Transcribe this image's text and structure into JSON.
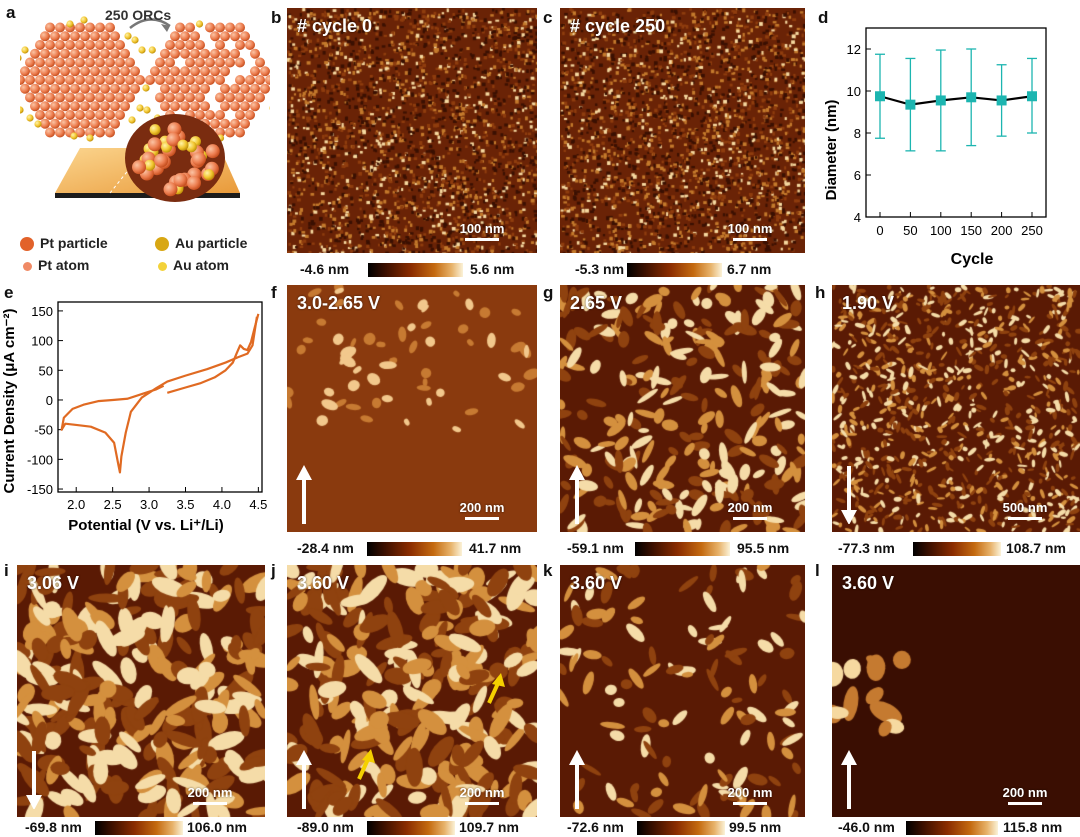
{
  "panel_letters": [
    "a",
    "b",
    "c",
    "d",
    "e",
    "f",
    "g",
    "h",
    "i",
    "j",
    "k",
    "l"
  ],
  "panel_a": {
    "arrow_label": "250 ORCs",
    "legend": [
      {
        "label": "Pt particle",
        "color": "#e2622a"
      },
      {
        "label": "Au particle",
        "color": "#d8a713"
      },
      {
        "label": "Pt atom",
        "color": "#f08a65"
      },
      {
        "label": "Au atom",
        "color": "#f3d23a"
      }
    ]
  },
  "afm_panels": [
    {
      "id": "b",
      "title": "# cycle 0",
      "scale": "100 nm",
      "cmin": "-4.6 nm",
      "cmax": "5.6 nm",
      "arrow": "none"
    },
    {
      "id": "c",
      "title": "# cycle 250",
      "scale": "100 nm",
      "cmin": "-5.3 nm",
      "cmax": "6.7 nm",
      "arrow": "none"
    },
    {
      "id": "f",
      "title": "3.0-2.65 V",
      "scale": "200 nm",
      "cmin": "-28.4 nm",
      "cmax": "41.7 nm",
      "arrow": "up"
    },
    {
      "id": "g",
      "title": "2.65 V",
      "scale": "200 nm",
      "cmin": "-59.1 nm",
      "cmax": "95.5 nm",
      "arrow": "up"
    },
    {
      "id": "h",
      "title": "1.90 V",
      "scale": "500 nm",
      "cmin": "-77.3 nm",
      "cmax": "108.7 nm",
      "arrow": "down"
    },
    {
      "id": "i",
      "title": "3.06 V",
      "scale": "200 nm",
      "cmin": "-69.8 nm",
      "cmax": "106.0 nm",
      "arrow": "down"
    },
    {
      "id": "j",
      "title": "3.60 V",
      "scale": "200 nm",
      "cmin": "-89.0 nm",
      "cmax": "109.7 nm",
      "arrow": "up"
    },
    {
      "id": "k",
      "title": "3.60 V",
      "scale": "200 nm",
      "cmin": "-72.6 nm",
      "cmax": "99.5 nm",
      "arrow": "up"
    },
    {
      "id": "l",
      "title": "3.60 V",
      "scale": "200 nm",
      "cmin": "-46.0 nm",
      "cmax": "115.8 nm",
      "arrow": "up"
    }
  ],
  "chart_data": [
    {
      "panel": "d",
      "type": "scatter",
      "xlabel": "Cycle",
      "ylabel": "Diameter (nm)",
      "xticks": [
        0,
        50,
        100,
        150,
        200,
        250
      ],
      "yticks": [
        4,
        6,
        8,
        10,
        12
      ],
      "ylim": [
        4,
        13
      ],
      "x": [
        0,
        50,
        100,
        150,
        200,
        250
      ],
      "y": [
        9.75,
        9.35,
        9.55,
        9.7,
        9.55,
        9.75
      ],
      "yerr_low": [
        7.75,
        7.15,
        7.15,
        7.4,
        7.85,
        8.0
      ],
      "yerr_high": [
        11.75,
        11.55,
        11.95,
        12.0,
        11.25,
        11.55
      ],
      "marker_color": "#1cb5b0",
      "line_color": "#000000"
    },
    {
      "panel": "e",
      "type": "line",
      "xlabel": "Potential (V vs. Li⁺/Li)",
      "ylabel": "Current Density (μA cm⁻²)",
      "xticks": [
        "2.0",
        "2.5",
        "3.0",
        "3.5",
        "4.0",
        "4.5"
      ],
      "yticks": [
        "150",
        "100",
        "50",
        "0",
        "-50",
        "-100",
        "-150"
      ],
      "xlim": [
        1.75,
        4.55
      ],
      "ylim": [
        -155,
        165
      ],
      "line_color": "#e06a22",
      "series": [
        {
          "x": [
            4.48,
            4.42,
            4.35,
            4.22,
            4.05,
            3.8,
            3.5,
            3.25,
            3.1,
            2.9,
            2.75,
            2.68,
            2.62,
            2.6,
            2.58,
            2.52,
            2.4,
            2.2,
            2.0,
            1.85,
            1.8,
            1.83,
            1.95,
            2.1,
            2.3,
            2.5,
            2.7,
            2.9,
            3.1,
            3.2
          ],
          "y": [
            140,
            92,
            78,
            72,
            63,
            52,
            41,
            31,
            20,
            4,
            -20,
            -55,
            -95,
            -122,
            -110,
            -72,
            -55,
            -45,
            -42,
            -40,
            -50,
            -30,
            -15,
            -8,
            -2,
            0,
            2,
            10,
            18,
            24
          ]
        },
        {
          "x": [
            3.25,
            3.5,
            3.7,
            3.9,
            4.05,
            4.15,
            4.2,
            4.25,
            4.3,
            4.35,
            4.4,
            4.45,
            4.5
          ],
          "y": [
            12,
            21,
            28,
            38,
            50,
            63,
            78,
            92,
            86,
            84,
            98,
            122,
            145
          ]
        }
      ]
    }
  ]
}
